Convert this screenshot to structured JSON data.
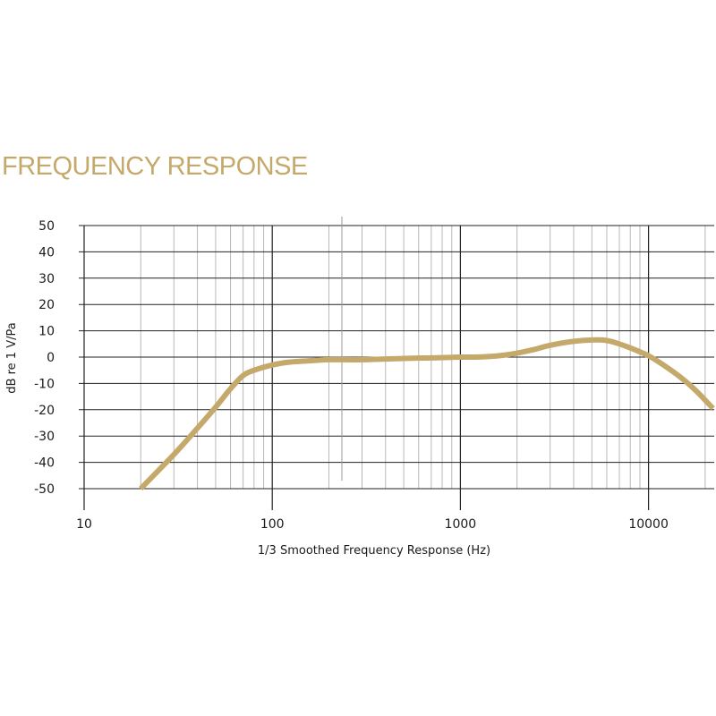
{
  "page": {
    "title": "FREQUENCY RESPONSE",
    "accent_color": "#c5a96b"
  },
  "chart_data": {
    "type": "line",
    "title": "FREQUENCY RESPONSE",
    "xlabel": "1/3 Smoothed Frequency Response (Hz)",
    "ylabel": "dB re 1 V/Pa",
    "xscale": "log",
    "xlim": [
      10,
      22000
    ],
    "ylim": [
      -50,
      50
    ],
    "xticks": [
      10,
      100,
      1000,
      10000
    ],
    "xtick_labels": [
      "10",
      "100",
      "1000",
      "10000"
    ],
    "yticks": [
      50,
      40,
      30,
      20,
      10,
      0,
      -10,
      -20,
      -30,
      -40,
      -50
    ],
    "ytick_labels": [
      "50",
      "40",
      "30",
      "20",
      "10",
      "0",
      "-10",
      "-20",
      "-30",
      "-40",
      "-50"
    ],
    "grid": true,
    "line_color": "#c5a96b",
    "series": [
      {
        "x": [
          20,
          30,
          40,
          50,
          60,
          70,
          80,
          100,
          120,
          150,
          200,
          300,
          500,
          700,
          1000,
          1200,
          1600,
          2000,
          2500,
          3000,
          4000,
          5000,
          6000,
          7000,
          8000,
          10000,
          12000,
          15000,
          18000,
          22000
        ],
        "y": [
          -50,
          -37,
          -27,
          -19,
          -12,
          -7,
          -5,
          -3,
          -2,
          -1.5,
          -1,
          -1,
          -0.5,
          -0.3,
          0,
          0,
          0.5,
          1.5,
          3,
          4.5,
          6,
          6.5,
          6.3,
          5,
          3.5,
          0.5,
          -3,
          -8,
          -13,
          -19.5
        ]
      }
    ]
  }
}
